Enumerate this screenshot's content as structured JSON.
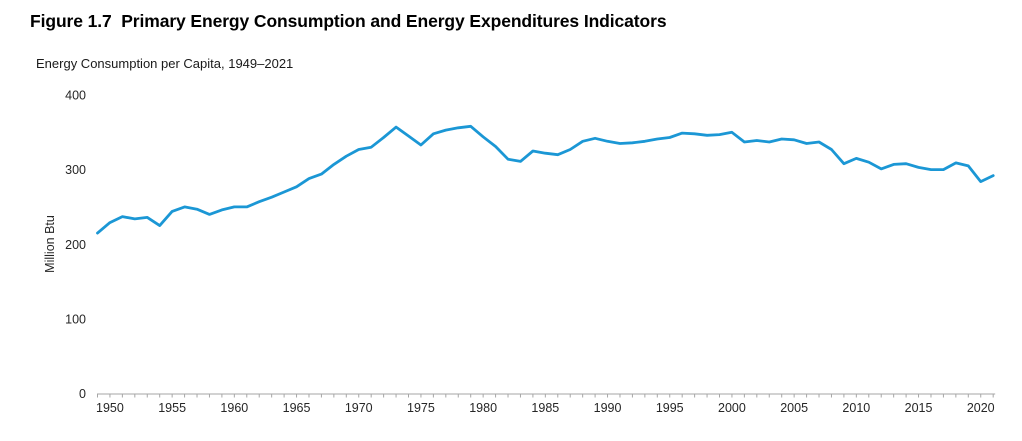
{
  "figure": {
    "title": "Figure 1.7  Primary Energy Consumption and Energy Expenditures Indicators"
  },
  "chart_data": {
    "type": "line",
    "title": "Energy Consumption per Capita, 1949–2021",
    "xlabel": "",
    "ylabel": "Million Btu",
    "ylim": [
      0,
      400
    ],
    "yticks": [
      0,
      100,
      200,
      300,
      400
    ],
    "xticks": [
      1950,
      1955,
      1960,
      1965,
      1970,
      1975,
      1980,
      1985,
      1990,
      1995,
      2000,
      2005,
      2010,
      2015,
      2020
    ],
    "grid": false,
    "legend_position": "none",
    "line_color": "#1b97d5",
    "axis_color": "#a6a6a6",
    "text_color": "#262626",
    "series_name": "Energy Consumption per Capita (Million Btu)",
    "x": [
      1949,
      1950,
      1951,
      1952,
      1953,
      1954,
      1955,
      1956,
      1957,
      1958,
      1959,
      1960,
      1961,
      1962,
      1963,
      1964,
      1965,
      1966,
      1967,
      1968,
      1969,
      1970,
      1971,
      1972,
      1973,
      1974,
      1975,
      1976,
      1977,
      1978,
      1979,
      1980,
      1981,
      1982,
      1983,
      1984,
      1985,
      1986,
      1987,
      1988,
      1989,
      1990,
      1991,
      1992,
      1993,
      1994,
      1995,
      1996,
      1997,
      1998,
      1999,
      2000,
      2001,
      2002,
      2003,
      2004,
      2005,
      2006,
      2007,
      2008,
      2009,
      2010,
      2011,
      2012,
      2013,
      2014,
      2015,
      2016,
      2017,
      2018,
      2019,
      2020,
      2021
    ],
    "values": [
      215,
      229,
      237,
      234,
      236,
      225,
      244,
      250,
      247,
      240,
      246,
      250,
      250,
      257,
      263,
      270,
      277,
      288,
      294,
      307,
      318,
      327,
      330,
      343,
      357,
      345,
      333,
      348,
      353,
      356,
      358,
      344,
      331,
      314,
      311,
      325,
      322,
      320,
      327,
      338,
      342,
      338,
      335,
      336,
      338,
      341,
      343,
      349,
      348,
      346,
      347,
      350,
      337,
      339,
      337,
      341,
      340,
      335,
      337,
      327,
      308,
      315,
      310,
      301,
      307,
      308,
      303,
      300,
      300,
      309,
      305,
      284,
      292
    ]
  }
}
